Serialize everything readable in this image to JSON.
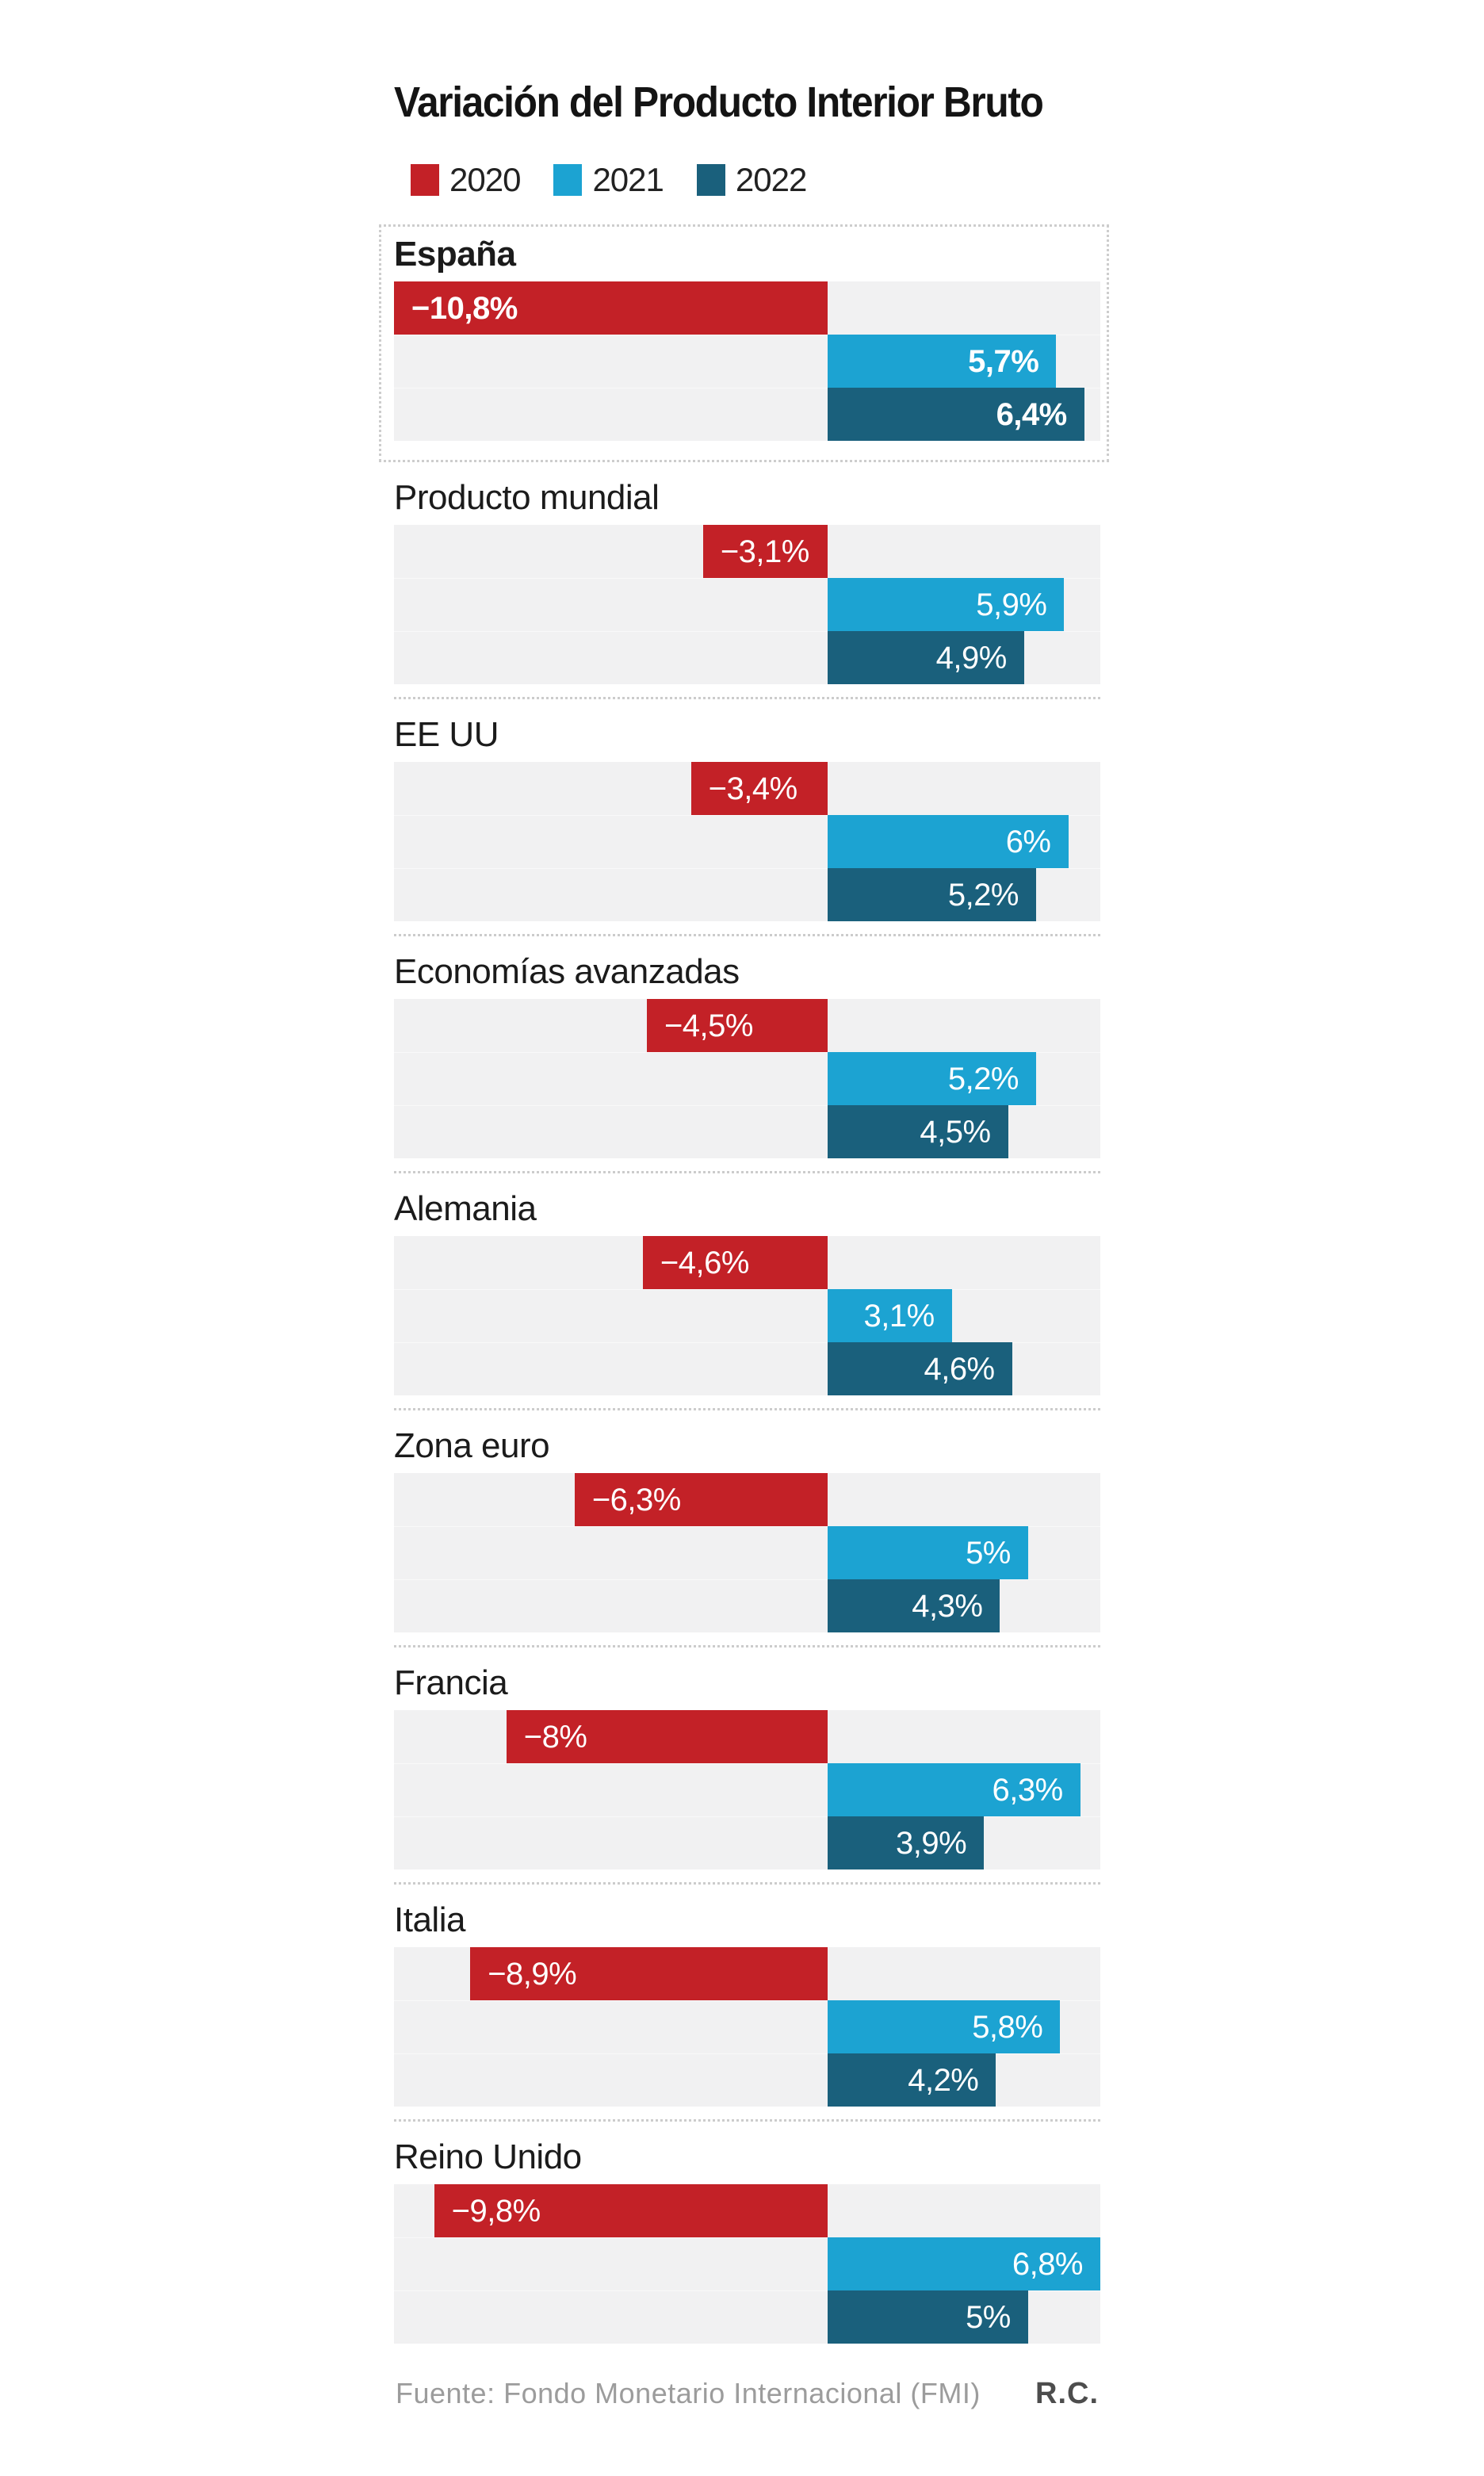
{
  "title": "Variación del Producto Interior Bruto",
  "legend": [
    {
      "label": "2020",
      "color": "#c32127"
    },
    {
      "label": "2021",
      "color": "#1ca3d2"
    },
    {
      "label": "2022",
      "color": "#1a607c"
    }
  ],
  "footer": {
    "source": "Fuente: Fondo Monetario Internacional (FMI)",
    "credit": "R.C."
  },
  "chart_data": {
    "type": "bar",
    "orientation": "horizontal",
    "unit": "%",
    "title": "Variación del Producto Interior Bruto",
    "axis_range": [
      -10.8,
      6.8
    ],
    "grid": false,
    "legend_position": "top",
    "series_names": [
      "2020",
      "2021",
      "2022"
    ],
    "colors": {
      "2020": "#c32127",
      "2021": "#1ca3d2",
      "2022": "#1a607c",
      "row_bg": "#f1f1f2"
    },
    "groups": [
      {
        "label": "España",
        "highlighted": true,
        "values": [
          -10.8,
          5.7,
          6.4
        ],
        "value_labels": [
          "−10,8%",
          "5,7%",
          "6,4%"
        ]
      },
      {
        "label": "Producto mundial",
        "highlighted": false,
        "values": [
          -3.1,
          5.9,
          4.9
        ],
        "value_labels": [
          "−3,1%",
          "5,9%",
          "4,9%"
        ]
      },
      {
        "label": "EE UU",
        "highlighted": false,
        "values": [
          -3.4,
          6.0,
          5.2
        ],
        "value_labels": [
          "−3,4%",
          "6%",
          "5,2%"
        ]
      },
      {
        "label": "Economías avanzadas",
        "highlighted": false,
        "values": [
          -4.5,
          5.2,
          4.5
        ],
        "value_labels": [
          "−4,5%",
          "5,2%",
          "4,5%"
        ]
      },
      {
        "label": "Alemania",
        "highlighted": false,
        "values": [
          -4.6,
          3.1,
          4.6
        ],
        "value_labels": [
          "−4,6%",
          "3,1%",
          "4,6%"
        ]
      },
      {
        "label": "Zona euro",
        "highlighted": false,
        "values": [
          -6.3,
          5.0,
          4.3
        ],
        "value_labels": [
          "−6,3%",
          "5%",
          "4,3%"
        ]
      },
      {
        "label": "Francia",
        "highlighted": false,
        "values": [
          -8.0,
          6.3,
          3.9
        ],
        "value_labels": [
          "−8%",
          "6,3%",
          "3,9%"
        ]
      },
      {
        "label": "Italia",
        "highlighted": false,
        "values": [
          -8.9,
          5.8,
          4.2
        ],
        "value_labels": [
          "−8,9%",
          "5,8%",
          "4,2%"
        ]
      },
      {
        "label": "Reino Unido",
        "highlighted": false,
        "values": [
          -9.8,
          6.8,
          5.0
        ],
        "value_labels": [
          "−9,8%",
          "6,8%",
          "5%"
        ]
      }
    ]
  }
}
